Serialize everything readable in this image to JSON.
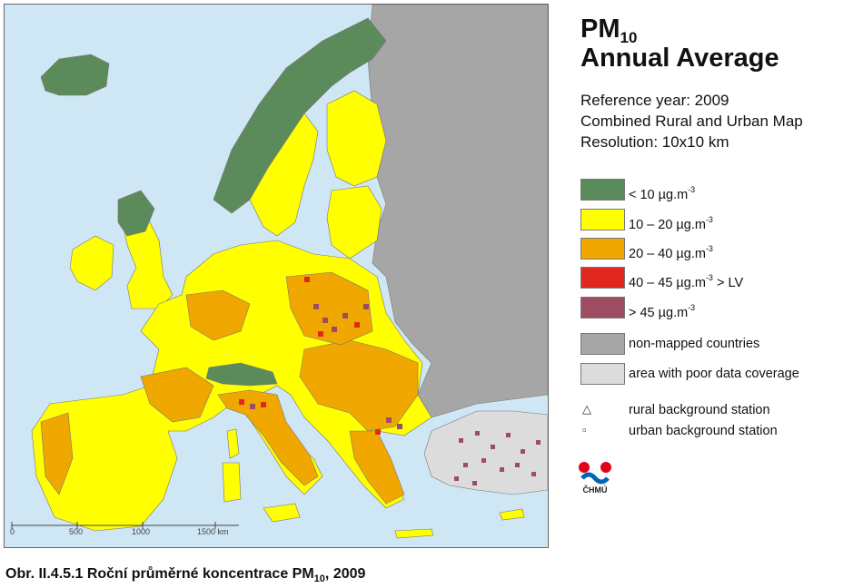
{
  "title": {
    "main": "PM",
    "subscript": "10",
    "line2": "Annual Average"
  },
  "meta": {
    "reference_year": "Reference year: 2009",
    "map_type": "Combined Rural and Urban Map",
    "resolution": "Resolution: 10x10 km"
  },
  "legend": {
    "classes": [
      {
        "label_pre": "<  10  µg.m",
        "sup": "-3",
        "label_post": "",
        "color": "#5b8b5b"
      },
      {
        "label_pre": "10 – 20  µg.m",
        "sup": "-3",
        "label_post": "",
        "color": "#ffff00"
      },
      {
        "label_pre": "20 – 40  µg.m",
        "sup": "-3",
        "label_post": "",
        "color": "#f0a800"
      },
      {
        "label_pre": "40 – 45  µg.m",
        "sup": "-3",
        "label_post": " > LV",
        "color": "#e0281e"
      },
      {
        "label_pre": ">  45  µg.m",
        "sup": "-3",
        "label_post": "",
        "color": "#9e4c62"
      }
    ],
    "areas": [
      {
        "label": "non-mapped countries",
        "color": "#a6a6a6"
      },
      {
        "label": "area with poor data coverage",
        "color": "#dcdcdc"
      }
    ],
    "markers": [
      {
        "symbol": "△",
        "label": "rural background station"
      },
      {
        "symbol": "▫",
        "label": "urban background station"
      }
    ]
  },
  "scale_bar": {
    "ticks": [
      "0",
      "500",
      "1000",
      "1500 km"
    ]
  },
  "logo": {
    "text": "ČHMÚ",
    "colors": [
      "#e3001b",
      "#0065b3"
    ]
  },
  "caption": {
    "pre": "Obr. II.4.5.1  Roční průměrné koncentrace PM",
    "sub": "10",
    "post": ", 2009"
  },
  "map_colors": {
    "sea": "#cfe6f4",
    "non_mapped": "#a6a6a6",
    "poor_coverage": "#dcdcdc",
    "lt10": "#5b8b5b",
    "c10_20": "#ffff00",
    "c20_40": "#f0a800",
    "c40_45": "#e0281e",
    "gt45": "#9e4c62"
  }
}
